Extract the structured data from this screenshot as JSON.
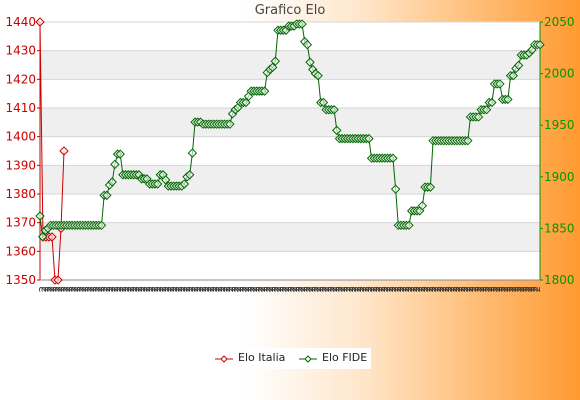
{
  "chart_data": {
    "type": "line",
    "title": "Grafico Elo",
    "xlabel": "",
    "ylabel_left": "",
    "ylabel_right": "",
    "left_axis": {
      "min": 1350,
      "max": 1440,
      "ticks": [
        1350,
        1360,
        1370,
        1380,
        1390,
        1400,
        1410,
        1420,
        1430,
        1440
      ],
      "color": "#cc0000"
    },
    "right_axis": {
      "min": 1800,
      "max": 2050,
      "ticks": [
        1800,
        1850,
        1900,
        1950,
        2000,
        2050
      ],
      "color": "#009900"
    },
    "grid": true,
    "legend_position": "bottom",
    "series": [
      {
        "name": "Elo Italia",
        "color": "#cc0000",
        "axis": "left",
        "values": [
          1440,
          1365,
          1365,
          1365,
          1365,
          1350,
          1350,
          1368,
          1395
        ]
      },
      {
        "name": "Elo FIDE",
        "color": "#006600",
        "axis": "right",
        "values": [
          1862,
          1842,
          1848,
          1850,
          1853,
          1853,
          1853,
          1853,
          1853,
          1853,
          1853,
          1853,
          1853,
          1853,
          1853,
          1853,
          1853,
          1853,
          1853,
          1853,
          1853,
          1853,
          1853,
          1853,
          1882,
          1882,
          1892,
          1895,
          1912,
          1922,
          1922,
          1902,
          1902,
          1902,
          1902,
          1902,
          1902,
          1902,
          1898,
          1898,
          1898,
          1893,
          1893,
          1893,
          1893,
          1902,
          1902,
          1897,
          1891,
          1891,
          1891,
          1891,
          1891,
          1891,
          1893,
          1900,
          1902,
          1923,
          1953,
          1953,
          1953,
          1951,
          1951,
          1951,
          1951,
          1951,
          1951,
          1951,
          1951,
          1951,
          1951,
          1951,
          1961,
          1965,
          1967,
          1972,
          1972,
          1972,
          1978,
          1983,
          1983,
          1983,
          1983,
          1983,
          1983,
          2001,
          2004,
          2006,
          2012,
          2042,
          2042,
          2042,
          2042,
          2046,
          2046,
          2046,
          2048,
          2048,
          2048,
          2031,
          2028,
          2011,
          2004,
          2000,
          1998,
          1972,
          1972,
          1965,
          1965,
          1965,
          1965,
          1945,
          1937,
          1937,
          1937,
          1937,
          1937,
          1937,
          1937,
          1937,
          1937,
          1937,
          1937,
          1937,
          1918,
          1918,
          1918,
          1918,
          1918,
          1918,
          1918,
          1918,
          1918,
          1888,
          1853,
          1853,
          1853,
          1853,
          1853,
          1867,
          1867,
          1867,
          1867,
          1872,
          1890,
          1890,
          1890,
          1935,
          1935,
          1935,
          1935,
          1935,
          1935,
          1935,
          1935,
          1935,
          1935,
          1935,
          1935,
          1935,
          1935,
          1958,
          1958,
          1958,
          1958,
          1965,
          1965,
          1965,
          1972,
          1972,
          1990,
          1990,
          1990,
          1975,
          1975,
          1975,
          1998,
          1998,
          2005,
          2008,
          2018,
          2018,
          2018,
          2020,
          2023,
          2028,
          2028,
          2028
        ]
      }
    ],
    "x_tick_label_prefix": [
      "2",
      "2",
      "2",
      "2",
      "2",
      "2",
      "2",
      "2",
      "2",
      "2",
      "2",
      "2",
      "2",
      "2",
      "2",
      "2",
      "2",
      "2",
      "2",
      "2",
      "2",
      "2",
      "2",
      "2",
      "2",
      "2",
      "2",
      "2",
      "2",
      "2",
      "2",
      "2",
      "2",
      "2",
      "2",
      "2",
      "2",
      "2",
      "2",
      "2",
      "2",
      "2",
      "2",
      "2",
      "2",
      "2",
      "2",
      "2",
      "2",
      "2",
      "2",
      "2",
      "2",
      "2",
      "2",
      "2",
      "2",
      "2",
      "2",
      "2",
      "2",
      "2",
      "2",
      "2",
      "2",
      "2",
      "2",
      "2",
      "2",
      "2",
      "2",
      "2",
      "2",
      "2",
      "2",
      "2",
      "2",
      "2",
      "2",
      "2",
      "2",
      "2",
      "2",
      "2",
      "2",
      "2",
      "2",
      "2",
      "2",
      "2",
      "2",
      "2",
      "2",
      "2",
      "2",
      "2",
      "2",
      "2",
      "2",
      "2",
      "2",
      "2",
      "2",
      "2",
      "2",
      "2",
      "2",
      "2",
      "2",
      "2",
      "2",
      "2",
      "2",
      "2",
      "2",
      "2",
      "2",
      "2",
      "2",
      "2",
      "2",
      "2",
      "2",
      "2",
      "2",
      "2",
      "2",
      "2",
      "2",
      "2",
      "2",
      "2",
      "2",
      "2",
      "2",
      "2",
      "2",
      "2",
      "2",
      "2",
      "2",
      "2",
      "2",
      "2",
      "2",
      "2",
      "2",
      "2",
      "2",
      "2",
      "2",
      "2",
      "2",
      "2",
      "2",
      "2",
      "2",
      "2",
      "2",
      "2",
      "2",
      "2",
      "2",
      "2",
      "2",
      "2",
      "2",
      "2",
      "2",
      "2",
      "2",
      "2",
      "2",
      "2",
      "2",
      "2",
      "2",
      "2",
      "2",
      "2",
      "2",
      "2",
      "2",
      "2",
      "2",
      "2"
    ]
  },
  "legend": {
    "items": [
      {
        "label": "Elo Italia",
        "color": "#cc0000"
      },
      {
        "label": "Elo FIDE",
        "color": "#006600"
      }
    ]
  }
}
